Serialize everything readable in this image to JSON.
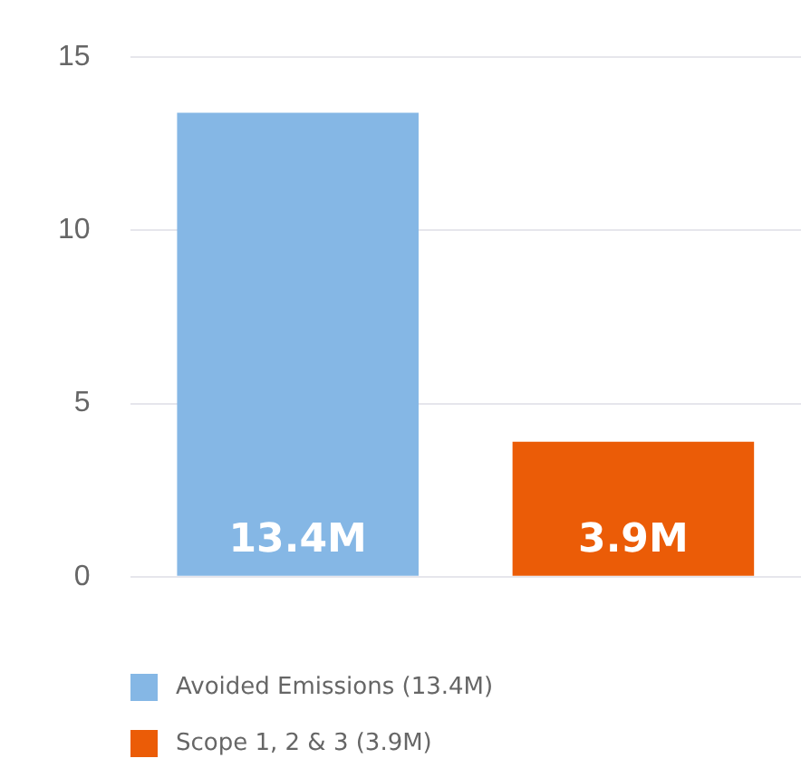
{
  "chart_data": {
    "type": "bar",
    "categories": [
      null,
      null
    ],
    "series": [
      {
        "name": "Avoided Emissions (13.4M)",
        "color": "#85b7e5",
        "values": [
          13.4,
          null
        ],
        "value_labels": [
          "13.4M",
          null
        ]
      },
      {
        "name": "Scope 1, 2 & 3 (3.9M)",
        "color": "#eb5c07",
        "values": [
          null,
          3.9
        ],
        "value_labels": [
          null,
          "3.9M"
        ]
      }
    ],
    "ylim": [
      0,
      15
    ],
    "yticks": [
      0,
      5,
      10,
      15
    ],
    "grid": "y",
    "legend": "bottom left"
  }
}
